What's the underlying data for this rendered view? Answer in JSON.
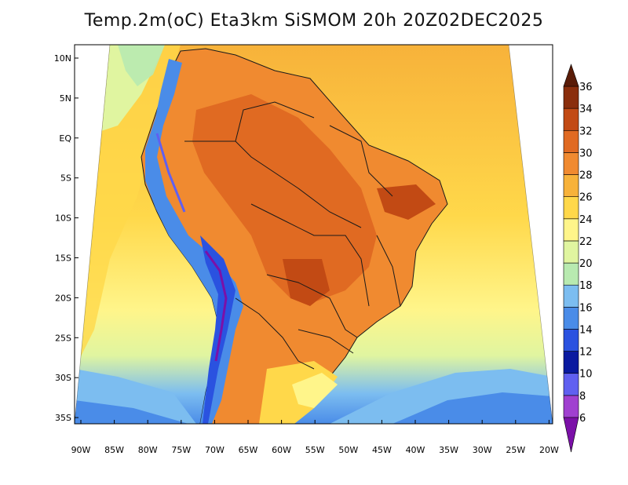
{
  "title": "Temp.2m(oC) Eta3km SiSMOM 20h 20Z02DEC2025",
  "map": {
    "lat_labels": [
      "10N",
      "5N",
      "EQ",
      "5S",
      "10S",
      "15S",
      "20S",
      "25S",
      "30S",
      "35S"
    ],
    "lon_labels": [
      "90W",
      "85W",
      "80W",
      "75W",
      "70W",
      "65W",
      "60W",
      "55W",
      "50W",
      "45W",
      "40W",
      "35W",
      "30W",
      "25W",
      "20W"
    ]
  },
  "colorbar": {
    "levels": [
      6,
      8,
      10,
      12,
      14,
      16,
      18,
      20,
      22,
      24,
      26,
      28,
      30,
      32,
      34,
      36
    ],
    "labels": [
      "6",
      "8",
      "10",
      "12",
      "14",
      "16",
      "18",
      "20",
      "22",
      "24",
      "26",
      "28",
      "30",
      "32",
      "34",
      "36"
    ],
    "colors": [
      "#7b10a8",
      "#a040d0",
      "#6060f0",
      "#0a1aa0",
      "#2a52e0",
      "#4a8ce8",
      "#7cbdf0",
      "#b8eab0",
      "#e0f5a0",
      "#fff58a",
      "#ffd84a",
      "#f7b23a",
      "#f08a30",
      "#e06a22",
      "#c24a14",
      "#8a2e0c",
      "#5a1c08"
    ]
  },
  "style": {
    "ocean_warm": "#f7b23a",
    "ocean_mid": "#ffd84a",
    "ocean_cool": "#fff58a",
    "land_hot": "#e06a22",
    "andes_cold": "#4a8ce8"
  }
}
